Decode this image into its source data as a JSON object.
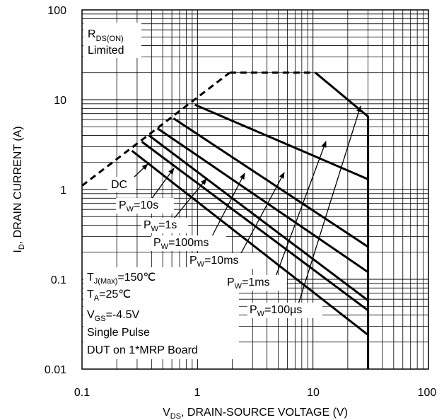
{
  "chart_data": {
    "type": "line",
    "xscale": "log",
    "yscale": "log",
    "xlim": [
      0.1,
      100
    ],
    "ylim": [
      0.01,
      100
    ],
    "grid": true,
    "xlabel_main": "V",
    "xlabel_sub": "DS",
    "xlabel_rest": ", DRAIN-SOURCE VOLTAGE (V)",
    "ylabel_main": "I",
    "ylabel_sub": "D",
    "ylabel_rest": ", DRAIN CURRENT (A)",
    "x_ticks": [
      {
        "value": 0.1,
        "label": "0.1"
      },
      {
        "value": 1,
        "label": "1"
      },
      {
        "value": 10,
        "label": "10"
      },
      {
        "value": 100,
        "label": "100"
      }
    ],
    "y_ticks": [
      {
        "value": 100,
        "label": "100"
      },
      {
        "value": 10,
        "label": "10"
      },
      {
        "value": 1,
        "label": "1"
      },
      {
        "value": 0.1,
        "label": "0.1"
      },
      {
        "value": 0.01,
        "label": "0.01"
      }
    ],
    "rds_limit_line": {
      "style": "dashed",
      "x": [
        0.1,
        1.9
      ],
      "y": [
        1.1,
        20
      ]
    },
    "package_limit": {
      "style": "dashed",
      "x": [
        1.9,
        10.5
      ],
      "y": [
        20,
        20
      ]
    },
    "series": [
      {
        "name": "P_W=100µs",
        "x": [
          10.5,
          30,
          30
        ],
        "y": [
          20,
          6.5,
          0.01
        ]
      },
      {
        "name": "P_W=1ms",
        "x": [
          0.95,
          30
        ],
        "y": [
          8.8,
          1.3
        ]
      },
      {
        "name": "P_W=10ms",
        "x": [
          0.62,
          30
        ],
        "y": [
          6.2,
          0.23
        ]
      },
      {
        "name": "P_W=100ms",
        "x": [
          0.45,
          30
        ],
        "y": [
          4.8,
          0.12
        ]
      },
      {
        "name": "P_W=1s",
        "x": [
          0.38,
          30
        ],
        "y": [
          4.0,
          0.058
        ]
      },
      {
        "name": "P_W=10s",
        "x": [
          0.33,
          30
        ],
        "y": [
          3.4,
          0.045
        ]
      },
      {
        "name": "DC",
        "x": [
          0.27,
          30
        ],
        "y": [
          2.7,
          0.024
        ]
      }
    ],
    "annotations": {
      "rds_main": "R",
      "rds_sub": "DS(ON)",
      "rds_line2": "Limited",
      "dc": "DC",
      "pw_main": "P",
      "pw_sub": "W",
      "pw10s": "=10s",
      "pw1s": "=1s",
      "pw100ms": "=100ms",
      "pw10ms": "=10ms",
      "pw1ms": "=1ms",
      "pw100us": "=100µs",
      "conditions": [
        {
          "main": "T",
          "sub": "J(Max)",
          "rest": "=150℃"
        },
        {
          "main": "T",
          "sub": "A",
          "rest": "=25℃"
        },
        {
          "main": "V",
          "sub": "GS",
          "rest": "=-4.5V"
        },
        {
          "main": "",
          "sub": "",
          "rest": "Single Pulse"
        },
        {
          "main": "",
          "sub": "",
          "rest": "DUT on 1*MRP Board"
        }
      ]
    }
  },
  "colors": {
    "line": "#000000",
    "grid": "#000000",
    "background": "#ffffff"
  }
}
